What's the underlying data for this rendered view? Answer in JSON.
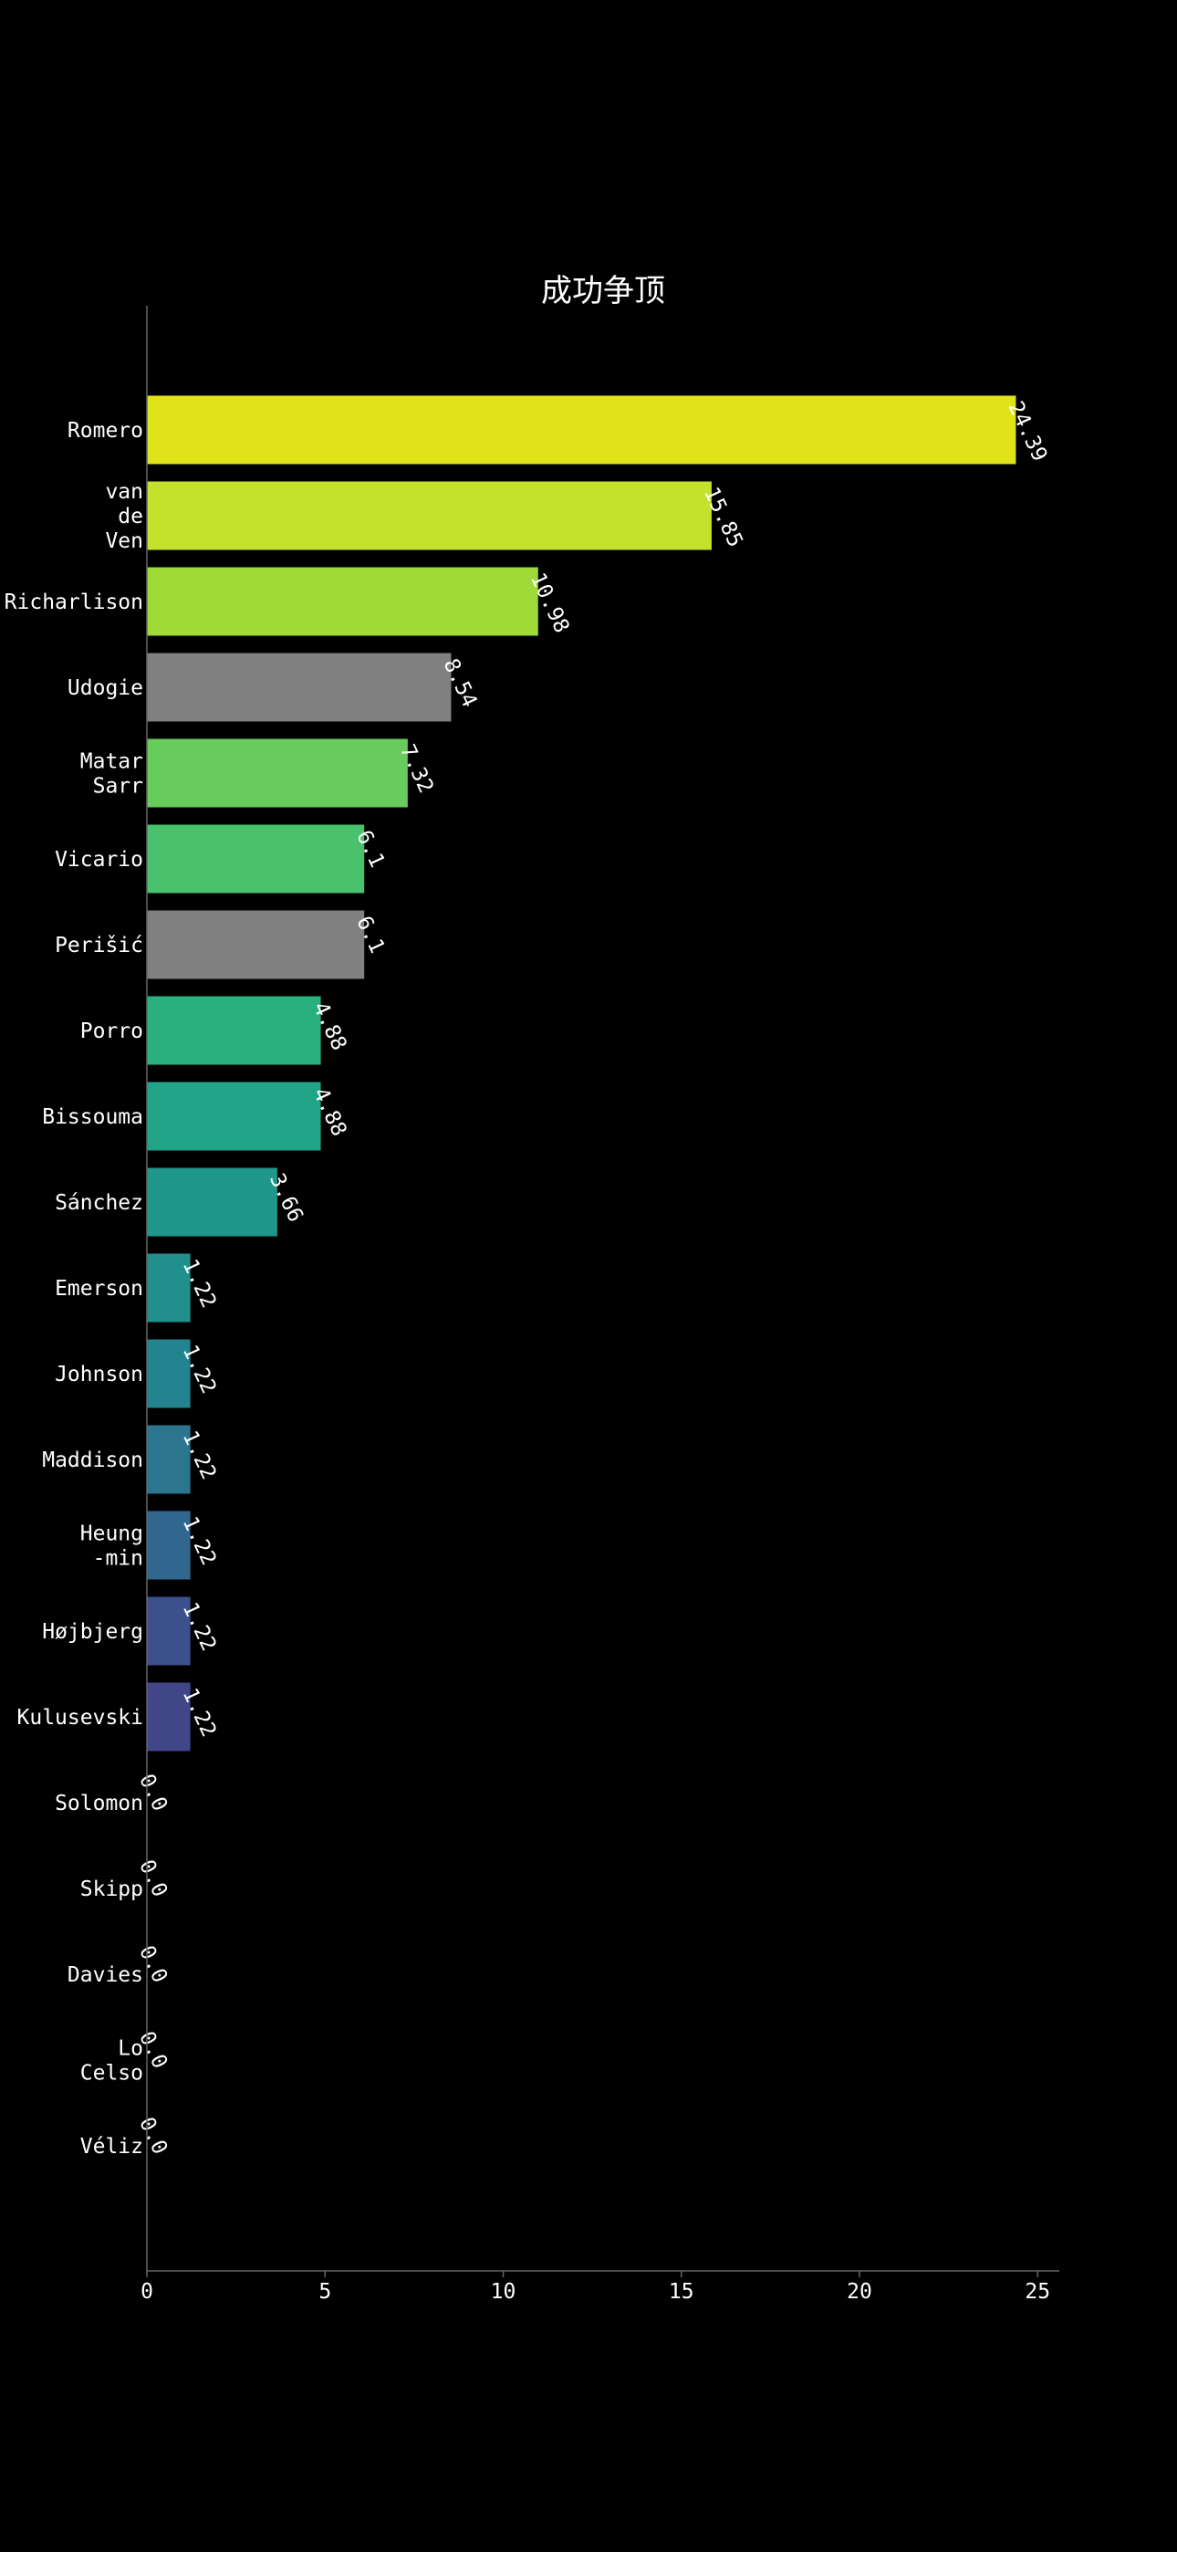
{
  "chart_data": {
    "type": "bar",
    "orientation": "horizontal",
    "title": "成功争顶",
    "xlabel": "",
    "ylabel": "",
    "xlim": [
      0,
      25.6
    ],
    "xticks": [
      0,
      5,
      10,
      15,
      20,
      25
    ],
    "grid": false,
    "categories": [
      [
        "Romero"
      ],
      [
        "van",
        "de",
        "Ven"
      ],
      [
        "Richarlison"
      ],
      [
        "Udogie"
      ],
      [
        "Matar",
        "Sarr"
      ],
      [
        "Vicario"
      ],
      [
        "Perišić"
      ],
      [
        "Porro"
      ],
      [
        "Bissouma"
      ],
      [
        "Sánchez"
      ],
      [
        "Emerson"
      ],
      [
        "Johnson"
      ],
      [
        "Maddison"
      ],
      [
        "Heung",
        "-min"
      ],
      [
        "Højbjerg"
      ],
      [
        "Kulusevski"
      ],
      [
        "Solomon"
      ],
      [
        "Skipp"
      ],
      [
        "Davies"
      ],
      [
        "Lo",
        "Celso"
      ],
      [
        "Véliz"
      ]
    ],
    "values": [
      24.39,
      15.85,
      10.98,
      8.54,
      7.32,
      6.1,
      6.1,
      4.88,
      4.88,
      3.66,
      1.22,
      1.22,
      1.22,
      1.22,
      1.22,
      1.22,
      0.0,
      0.0,
      0.0,
      0.0,
      0.0
    ],
    "value_labels": [
      "24.39",
      "15.85",
      "10.98",
      "8.54",
      "7.32",
      "6.1",
      "6.1",
      "4.88",
      "4.88",
      "3.66",
      "1.22",
      "1.22",
      "1.22",
      "1.22",
      "1.22",
      "1.22",
      "0.0",
      "0.0",
      "0.0",
      "0.0",
      "0.0"
    ],
    "colors": [
      "#e1e31a",
      "#c4e12b",
      "#a0da39",
      "#808080",
      "#67cc5c",
      "#4ac16d",
      "#808080",
      "#2ab07f",
      "#20a386",
      "#1f978b",
      "#21908d",
      "#23838e",
      "#2b758e",
      "#31668e",
      "#3c508b",
      "#404688",
      "#440154",
      "#440154",
      "#440154",
      "#440154",
      "#440154"
    ],
    "background": "#000000",
    "axis_color": "#666666",
    "text_color": "#ffffff"
  }
}
